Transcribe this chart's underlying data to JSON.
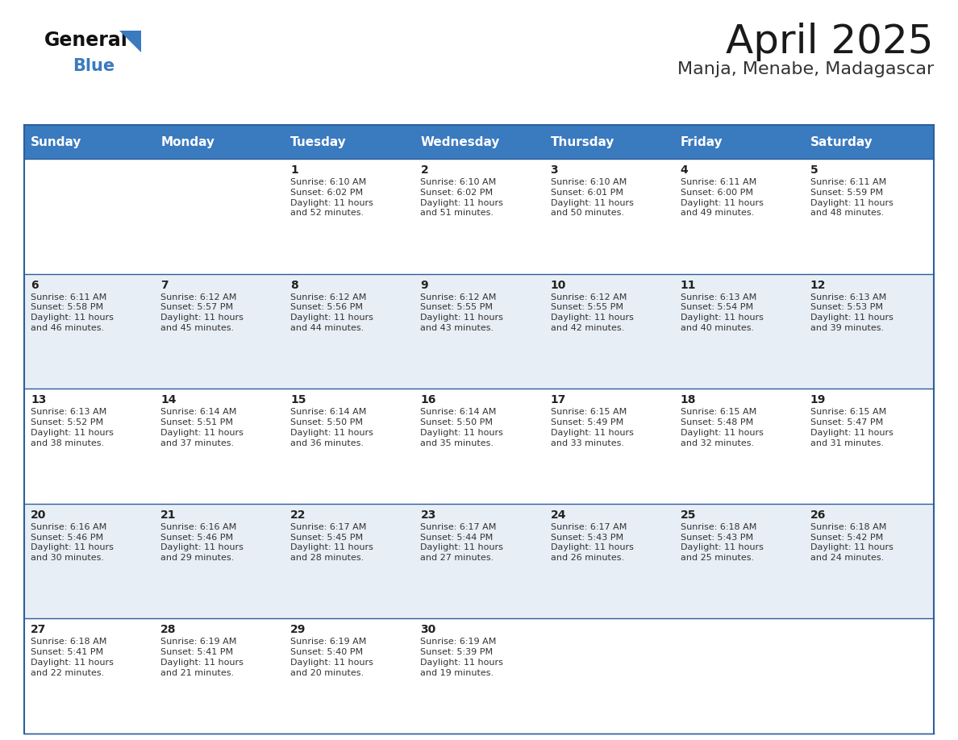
{
  "title": "April 2025",
  "subtitle": "Manja, Menabe, Madagascar",
  "header_bg": "#3a7abf",
  "header_text": "#ffffff",
  "cell_bg_even": "#ffffff",
  "cell_bg_odd": "#e8eef5",
  "border_color": "#2c5f9e",
  "text_color": "#333333",
  "day_num_color": "#222222",
  "days_of_week": [
    "Sunday",
    "Monday",
    "Tuesday",
    "Wednesday",
    "Thursday",
    "Friday",
    "Saturday"
  ],
  "calendar_data": [
    [
      {
        "day": "",
        "info": ""
      },
      {
        "day": "",
        "info": ""
      },
      {
        "day": "1",
        "info": "Sunrise: 6:10 AM\nSunset: 6:02 PM\nDaylight: 11 hours\nand 52 minutes."
      },
      {
        "day": "2",
        "info": "Sunrise: 6:10 AM\nSunset: 6:02 PM\nDaylight: 11 hours\nand 51 minutes."
      },
      {
        "day": "3",
        "info": "Sunrise: 6:10 AM\nSunset: 6:01 PM\nDaylight: 11 hours\nand 50 minutes."
      },
      {
        "day": "4",
        "info": "Sunrise: 6:11 AM\nSunset: 6:00 PM\nDaylight: 11 hours\nand 49 minutes."
      },
      {
        "day": "5",
        "info": "Sunrise: 6:11 AM\nSunset: 5:59 PM\nDaylight: 11 hours\nand 48 minutes."
      }
    ],
    [
      {
        "day": "6",
        "info": "Sunrise: 6:11 AM\nSunset: 5:58 PM\nDaylight: 11 hours\nand 46 minutes."
      },
      {
        "day": "7",
        "info": "Sunrise: 6:12 AM\nSunset: 5:57 PM\nDaylight: 11 hours\nand 45 minutes."
      },
      {
        "day": "8",
        "info": "Sunrise: 6:12 AM\nSunset: 5:56 PM\nDaylight: 11 hours\nand 44 minutes."
      },
      {
        "day": "9",
        "info": "Sunrise: 6:12 AM\nSunset: 5:55 PM\nDaylight: 11 hours\nand 43 minutes."
      },
      {
        "day": "10",
        "info": "Sunrise: 6:12 AM\nSunset: 5:55 PM\nDaylight: 11 hours\nand 42 minutes."
      },
      {
        "day": "11",
        "info": "Sunrise: 6:13 AM\nSunset: 5:54 PM\nDaylight: 11 hours\nand 40 minutes."
      },
      {
        "day": "12",
        "info": "Sunrise: 6:13 AM\nSunset: 5:53 PM\nDaylight: 11 hours\nand 39 minutes."
      }
    ],
    [
      {
        "day": "13",
        "info": "Sunrise: 6:13 AM\nSunset: 5:52 PM\nDaylight: 11 hours\nand 38 minutes."
      },
      {
        "day": "14",
        "info": "Sunrise: 6:14 AM\nSunset: 5:51 PM\nDaylight: 11 hours\nand 37 minutes."
      },
      {
        "day": "15",
        "info": "Sunrise: 6:14 AM\nSunset: 5:50 PM\nDaylight: 11 hours\nand 36 minutes."
      },
      {
        "day": "16",
        "info": "Sunrise: 6:14 AM\nSunset: 5:50 PM\nDaylight: 11 hours\nand 35 minutes."
      },
      {
        "day": "17",
        "info": "Sunrise: 6:15 AM\nSunset: 5:49 PM\nDaylight: 11 hours\nand 33 minutes."
      },
      {
        "day": "18",
        "info": "Sunrise: 6:15 AM\nSunset: 5:48 PM\nDaylight: 11 hours\nand 32 minutes."
      },
      {
        "day": "19",
        "info": "Sunrise: 6:15 AM\nSunset: 5:47 PM\nDaylight: 11 hours\nand 31 minutes."
      }
    ],
    [
      {
        "day": "20",
        "info": "Sunrise: 6:16 AM\nSunset: 5:46 PM\nDaylight: 11 hours\nand 30 minutes."
      },
      {
        "day": "21",
        "info": "Sunrise: 6:16 AM\nSunset: 5:46 PM\nDaylight: 11 hours\nand 29 minutes."
      },
      {
        "day": "22",
        "info": "Sunrise: 6:17 AM\nSunset: 5:45 PM\nDaylight: 11 hours\nand 28 minutes."
      },
      {
        "day": "23",
        "info": "Sunrise: 6:17 AM\nSunset: 5:44 PM\nDaylight: 11 hours\nand 27 minutes."
      },
      {
        "day": "24",
        "info": "Sunrise: 6:17 AM\nSunset: 5:43 PM\nDaylight: 11 hours\nand 26 minutes."
      },
      {
        "day": "25",
        "info": "Sunrise: 6:18 AM\nSunset: 5:43 PM\nDaylight: 11 hours\nand 25 minutes."
      },
      {
        "day": "26",
        "info": "Sunrise: 6:18 AM\nSunset: 5:42 PM\nDaylight: 11 hours\nand 24 minutes."
      }
    ],
    [
      {
        "day": "27",
        "info": "Sunrise: 6:18 AM\nSunset: 5:41 PM\nDaylight: 11 hours\nand 22 minutes."
      },
      {
        "day": "28",
        "info": "Sunrise: 6:19 AM\nSunset: 5:41 PM\nDaylight: 11 hours\nand 21 minutes."
      },
      {
        "day": "29",
        "info": "Sunrise: 6:19 AM\nSunset: 5:40 PM\nDaylight: 11 hours\nand 20 minutes."
      },
      {
        "day": "30",
        "info": "Sunrise: 6:19 AM\nSunset: 5:39 PM\nDaylight: 11 hours\nand 19 minutes."
      },
      {
        "day": "",
        "info": ""
      },
      {
        "day": "",
        "info": ""
      },
      {
        "day": "",
        "info": ""
      }
    ]
  ],
  "logo_general_color": "#111111",
  "logo_blue_color": "#3a7abf",
  "title_fontsize": 36,
  "subtitle_fontsize": 16,
  "header_fontsize": 11,
  "day_num_fontsize": 10,
  "info_fontsize": 8
}
